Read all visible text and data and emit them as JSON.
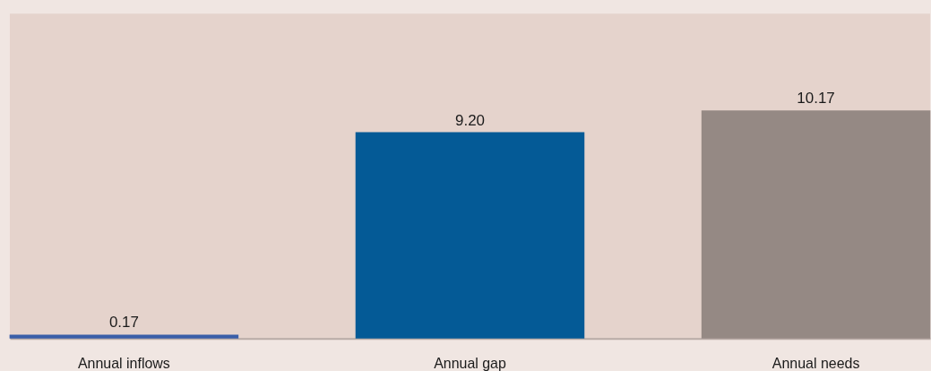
{
  "chart_data": {
    "type": "bar",
    "categories": [
      "Annual inflows",
      "Annual gap",
      "Annual needs"
    ],
    "values": [
      0.17,
      9.2,
      10.17
    ],
    "colors": [
      "#3a5ea8",
      "#045a96",
      "#958984"
    ],
    "value_labels": [
      "0.17",
      "9.20",
      "10.17"
    ]
  }
}
